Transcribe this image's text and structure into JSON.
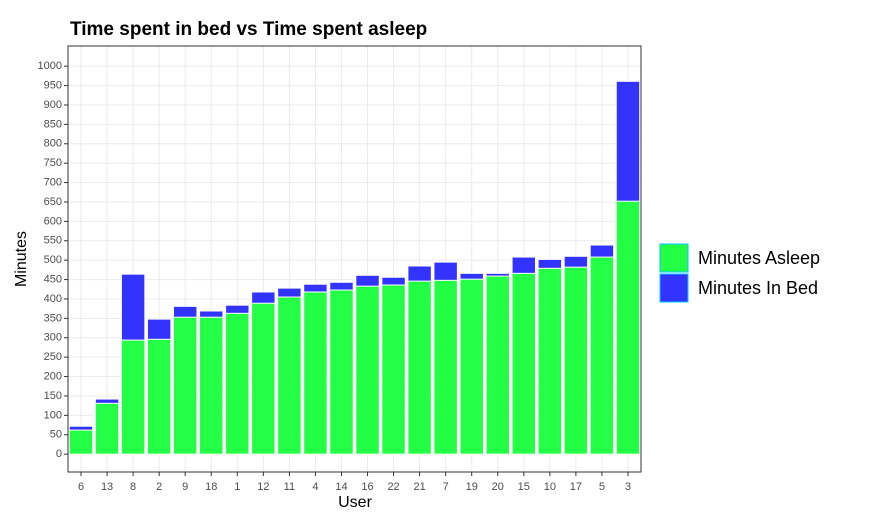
{
  "chart_data": {
    "type": "bar",
    "barmode": "overlay",
    "title": "Time spent in bed vs Time spent asleep",
    "x_label": "User",
    "y_label": "Minutes",
    "categories": [
      "6",
      "13",
      "8",
      "2",
      "9",
      "18",
      "1",
      "12",
      "11",
      "4",
      "14",
      "16",
      "22",
      "21",
      "7",
      "19",
      "20",
      "15",
      "10",
      "17",
      "5",
      "3"
    ],
    "series": [
      {
        "name": "Minutes Asleep",
        "color": "#22ff44",
        "values": [
          62,
          131,
          294,
          296,
          353,
          353,
          363,
          389,
          405,
          418,
          423,
          433,
          436,
          446,
          448,
          451,
          459,
          466,
          479,
          482,
          508,
          652
        ]
      },
      {
        "name": "Minutes In Bed",
        "color": "#3333ff",
        "values": [
          72,
          142,
          464,
          348,
          381,
          369,
          384,
          418,
          428,
          438,
          443,
          461,
          456,
          485,
          495,
          466,
          466,
          508,
          502,
          510,
          539,
          961
        ]
      }
    ],
    "ylim": [
      -46,
      1052
    ],
    "yticks": [
      0,
      50,
      100,
      150,
      200,
      250,
      300,
      350,
      400,
      450,
      500,
      550,
      600,
      650,
      700,
      750,
      800,
      850,
      900,
      950,
      1000
    ],
    "grid": true,
    "legend": "right"
  }
}
